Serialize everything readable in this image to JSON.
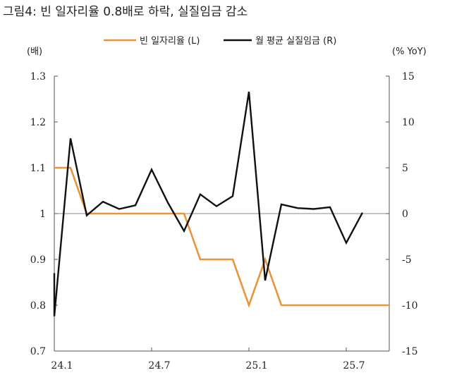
{
  "chart_data": {
    "type": "line",
    "title": "그림4: 빈 일자리율 0.8배로 하락, 실질임금 감소",
    "left_unit": "(배)",
    "right_unit": "(% YoY)",
    "x": [
      "24.1",
      "24.2",
      "24.3",
      "24.4",
      "24.5",
      "24.6",
      "24.7",
      "24.8",
      "24.9",
      "24.10",
      "24.11",
      "24.12",
      "25.1",
      "25.2",
      "25.3",
      "25.4",
      "25.5",
      "25.6",
      "25.7",
      "25.8",
      "25.9",
      "25.10"
    ],
    "x_tick_labels": [
      "24.1",
      "24.7",
      "25.1",
      "25.7"
    ],
    "x_tick_positions": [
      "24.1",
      "24.7",
      "25.1",
      "25.7"
    ],
    "y_left": {
      "ylim": [
        0.7,
        1.3
      ],
      "ticks": [
        "1.3",
        "1.2",
        "1.1",
        "1",
        "0.9",
        "0.8",
        "0.7"
      ],
      "tick_values": [
        1.3,
        1.2,
        1.1,
        1.0,
        0.9,
        0.8,
        0.7
      ]
    },
    "y_right": {
      "ylim": [
        -15,
        15
      ],
      "ticks": [
        "15",
        "10",
        "5",
        "0",
        "-5",
        "-10",
        "-15"
      ],
      "tick_values": [
        15,
        10,
        5,
        0,
        -5,
        -10,
        -15
      ]
    },
    "series": [
      {
        "name": "빈 일자리율 (L)",
        "axis": "left",
        "color": "#e8953a",
        "points": [
          [
            "24.1",
            1.1
          ],
          [
            "24.2",
            1.1
          ],
          [
            "24.3",
            1.0
          ],
          [
            "24.4",
            1.0
          ],
          [
            "24.5",
            1.0
          ],
          [
            "24.6",
            1.0
          ],
          [
            "24.7",
            1.0
          ],
          [
            "24.8",
            1.0
          ],
          [
            "24.9",
            1.0
          ],
          [
            "24.10",
            0.9
          ],
          [
            "24.11",
            0.9
          ],
          [
            "24.12",
            0.9
          ],
          [
            "25.1",
            0.8
          ],
          [
            "25.2",
            0.9
          ],
          [
            "25.3",
            0.8
          ],
          [
            "25.4",
            0.8
          ],
          [
            "25.5",
            0.8
          ],
          [
            "25.6",
            0.8
          ],
          [
            "25.7",
            0.8
          ],
          [
            "25.8",
            0.8
          ],
          [
            "25.9",
            0.8
          ],
          [
            "25.10",
            0.8
          ]
        ]
      },
      {
        "name": "월 평균 실질임금 (R)",
        "axis": "right",
        "color": "#111111",
        "points": [
          [
            "23.12",
            -6.5
          ],
          [
            "24.1",
            -11.2
          ],
          [
            "24.2",
            8.2
          ],
          [
            "24.3",
            -0.2
          ],
          [
            "24.4",
            1.3
          ],
          [
            "24.5",
            0.5
          ],
          [
            "24.6",
            0.9
          ],
          [
            "24.7",
            4.8
          ],
          [
            "24.8",
            1.2
          ],
          [
            "24.9",
            -1.9
          ],
          [
            "24.10",
            2.1
          ],
          [
            "24.11",
            0.8
          ],
          [
            "24.12",
            1.9
          ],
          [
            "25.1",
            13.3
          ],
          [
            "25.2",
            -7.3
          ],
          [
            "25.3",
            1.0
          ],
          [
            "25.4",
            0.6
          ],
          [
            "25.5",
            0.5
          ],
          [
            "25.6",
            0.7
          ],
          [
            "25.7",
            -3.2
          ],
          [
            "25.8",
            0.1
          ]
        ]
      }
    ],
    "legend_position": "top-center",
    "grid": false,
    "zero_line": true
  }
}
